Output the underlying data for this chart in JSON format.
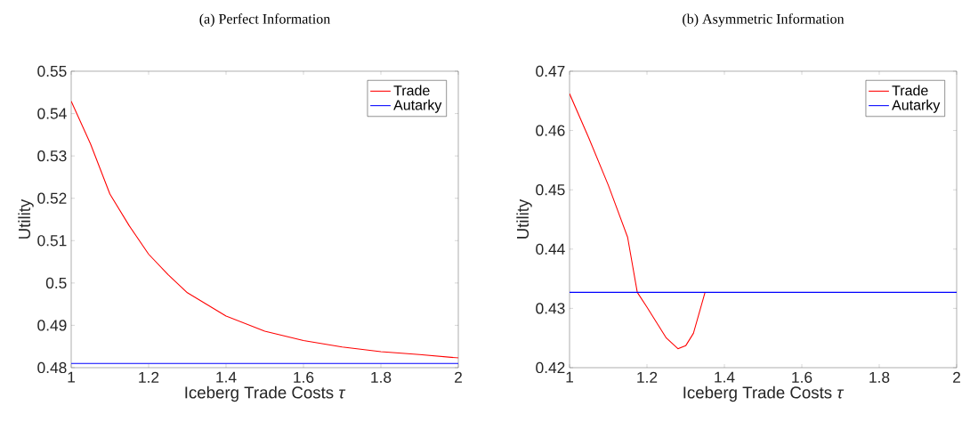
{
  "chart_data": [
    {
      "type": "line",
      "title": "(a) Perfect Information",
      "xlabel": "Iceberg Trade Costs *τ*",
      "ylabel": "Utility",
      "xlim": [
        1,
        2
      ],
      "ylim": [
        0.48,
        0.55
      ],
      "xticks": [
        1,
        1.2,
        1.4,
        1.6,
        1.8,
        2
      ],
      "yticks": [
        0.48,
        0.49,
        0.5,
        0.51,
        0.52,
        0.53,
        0.54,
        0.55
      ],
      "legend": "top right",
      "grid": false,
      "marker": "none",
      "line_style": "solid",
      "series": [
        {
          "name": "Trade",
          "color": "#ff0000",
          "x": [
            1,
            1.05,
            1.1,
            1.15,
            1.2,
            1.25,
            1.3,
            1.4,
            1.5,
            1.6,
            1.7,
            1.8,
            1.9,
            2
          ],
          "values": [
            0.5429,
            0.5328,
            0.521,
            0.5135,
            0.5068,
            0.502,
            0.4977,
            0.4922,
            0.4886,
            0.4864,
            0.4849,
            0.4838,
            0.4831,
            0.4823
          ]
        },
        {
          "name": "Autarky",
          "color": "#0000ff",
          "x": [
            1,
            2
          ],
          "values": [
            0.481,
            0.481
          ]
        }
      ]
    },
    {
      "type": "line",
      "title": "(b) Asymmetric Information",
      "xlabel": "Iceberg Trade Costs *τ*",
      "ylabel": "Utility",
      "xlim": [
        1,
        2
      ],
      "ylim": [
        0.42,
        0.47
      ],
      "xticks": [
        1,
        1.2,
        1.4,
        1.6,
        1.8,
        2
      ],
      "yticks": [
        0.42,
        0.43,
        0.44,
        0.45,
        0.46,
        0.47
      ],
      "legend": "top right",
      "grid": false,
      "marker": "none",
      "line_style": "solid",
      "series": [
        {
          "name": "Trade",
          "color": "#ff0000",
          "x": [
            1,
            1.05,
            1.1,
            1.15,
            1.175,
            1.2,
            1.25,
            1.28,
            1.3,
            1.32,
            1.35
          ],
          "values": [
            0.4662,
            0.4587,
            0.4508,
            0.442,
            0.4327,
            0.4302,
            0.425,
            0.4232,
            0.4237,
            0.4258,
            0.4327
          ]
        },
        {
          "name": "Autarky",
          "color": "#0000ff",
          "x": [
            1,
            2
          ],
          "values": [
            0.4327,
            0.4327
          ]
        }
      ]
    }
  ]
}
